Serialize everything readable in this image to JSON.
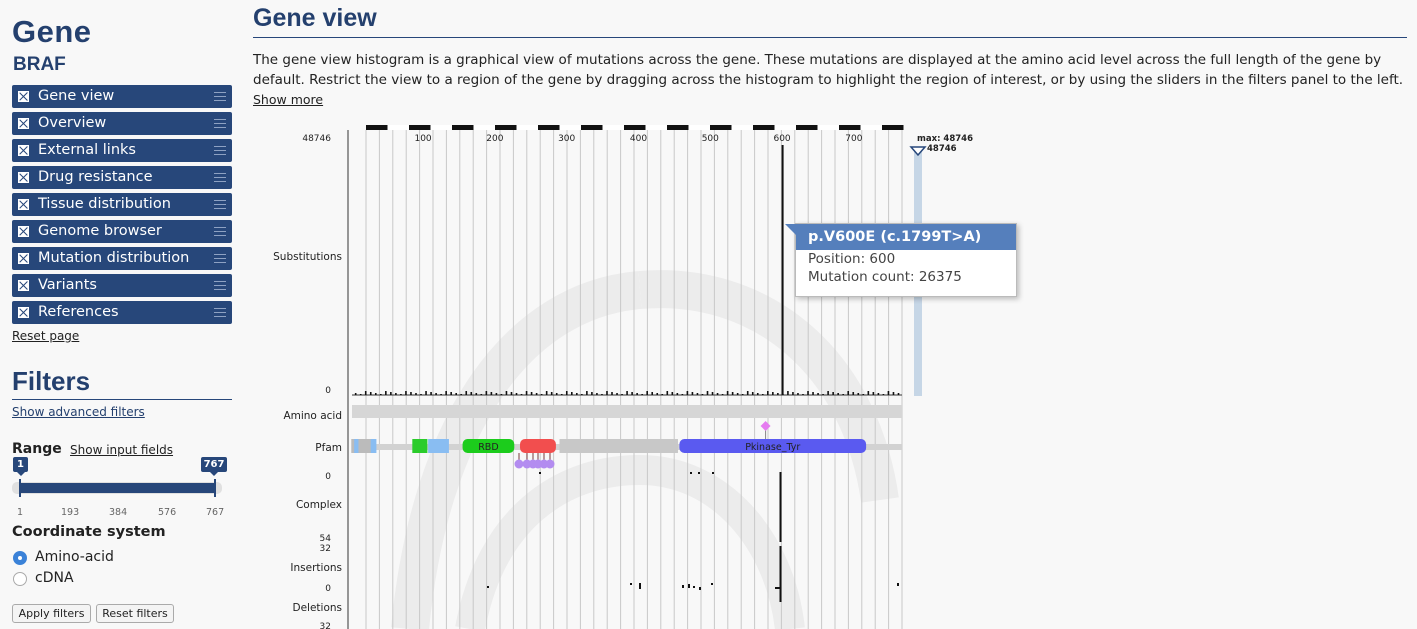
{
  "sidebar": {
    "title": "Gene",
    "gene": "BRAF",
    "items": [
      {
        "label": "Gene view"
      },
      {
        "label": "Overview"
      },
      {
        "label": "External links"
      },
      {
        "label": "Drug resistance"
      },
      {
        "label": "Tissue distribution"
      },
      {
        "label": "Genome browser"
      },
      {
        "label": "Mutation distribution"
      },
      {
        "label": "Variants"
      },
      {
        "label": "References"
      }
    ],
    "reset_label": "Reset page"
  },
  "filters": {
    "title": "Filters",
    "advanced_link": "Show advanced filters",
    "range_label": "Range",
    "show_input_fields": "Show input fields",
    "range_min": "1",
    "range_max": "767",
    "ticks": [
      "1",
      "193",
      "384",
      "576",
      "767"
    ],
    "coord_label": "Coordinate system",
    "options": [
      "Amino-acid",
      "cDNA"
    ],
    "selected_option": "Amino-acid",
    "apply_label": "Apply filters",
    "reset_label": "Reset filters"
  },
  "main": {
    "title": "Gene view",
    "description": "The gene view histogram is a graphical view of mutations across the gene. These mutations are displayed at the amino acid level across the full length of the gene by default. Restrict the view to a region of the gene by dragging across the histogram to highlight the region of interest, or by using the sliders in the filters panel to the left.",
    "show_more": "Show more"
  },
  "tooltip": {
    "title": "p.V600E (c.1799T>A)",
    "position_label": "Position: 600",
    "count_label": "Mutation count: 26375"
  },
  "chart_data": {
    "type": "bar",
    "x_ticks": [
      100,
      200,
      300,
      400,
      500,
      600,
      700
    ],
    "x_range": [
      1,
      767
    ],
    "track_labels": [
      "Substitutions",
      "Amino acid",
      "Pfam",
      "Complex",
      "Insertions",
      "Deletions"
    ],
    "substitutions": {
      "y_max_label": "48746",
      "y_min_label": "0",
      "max_marker": "max: 48746",
      "max_marker_value": "48746",
      "peaks": [
        {
          "position": 600,
          "count": 26375
        }
      ]
    },
    "pfam": {
      "domains": [
        {
          "name": "RBD",
          "start": 155,
          "end": 227,
          "color": "#1ccc1c"
        },
        {
          "name": "",
          "start": 235,
          "end": 285,
          "color": "#f24e4e"
        },
        {
          "name": "Pkinase_Tyr",
          "start": 457,
          "end": 717,
          "color": "#5a5af0"
        }
      ],
      "blue_segments": [
        [
          4,
          10
        ],
        [
          27,
          35
        ],
        [
          107,
          136
        ],
        [
          316,
          325
        ],
        [
          342,
          348
        ],
        [
          433,
          436
        ]
      ],
      "green_segments": [
        [
          85,
          106
        ]
      ],
      "marker_position": 577
    },
    "complex": {
      "y_min_label": "0",
      "y_max_label": "54"
    },
    "insertions": {
      "y_max_label": "32",
      "y_min_label": "0"
    },
    "deletions": {
      "y_max_label": "32"
    }
  }
}
